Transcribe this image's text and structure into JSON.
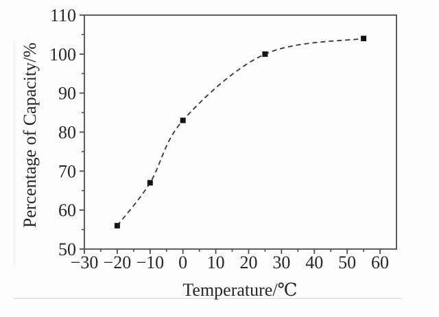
{
  "chart_data": {
    "type": "line",
    "title": "",
    "xlabel": "Temperature/℃",
    "ylabel": "Percentage of Capacity/%",
    "x": [
      -20,
      -10,
      0,
      25,
      55
    ],
    "y": [
      56,
      67,
      83,
      100,
      104
    ],
    "xlim": [
      -30,
      65
    ],
    "ylim": [
      50,
      110
    ],
    "x_major_ticks": [
      -30,
      -20,
      -10,
      0,
      10,
      20,
      30,
      40,
      50,
      60
    ],
    "y_major_ticks": [
      50,
      60,
      70,
      80,
      90,
      100,
      110
    ],
    "minor_tick_step": 5,
    "grid": false,
    "legend": "none",
    "line_style": "dashed",
    "marker": "filled-square",
    "colors": {
      "line": "#3d3d3d",
      "marker": "#141414",
      "axis": "#4d4d4d",
      "text": "#262626"
    }
  }
}
